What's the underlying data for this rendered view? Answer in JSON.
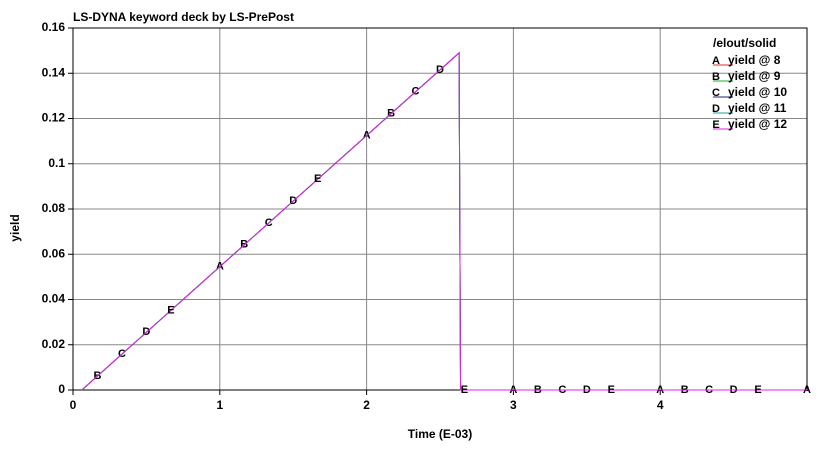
{
  "chart_data": {
    "type": "line",
    "title": "LS-DYNA keyword deck by LS-PrePost",
    "legend_title": "/elout/solid",
    "xlabel": "Time (E-03)",
    "ylabel": "yield",
    "xlim": [
      0,
      5
    ],
    "xticks": [
      0,
      1,
      2,
      3,
      4
    ],
    "ylim": [
      0,
      0.16
    ],
    "yticks": [
      0,
      0.02,
      0.04,
      0.06,
      0.08,
      0.1,
      0.12,
      0.14,
      0.16
    ],
    "grid": true,
    "legend": "top-right",
    "series": [
      {
        "name": "yield @ 8",
        "marker": "A",
        "color": "#e03030",
        "x": [
          0.06,
          2.63,
          2.64,
          5
        ],
        "values": [
          0,
          0.149,
          0,
          0
        ]
      },
      {
        "name": "yield @ 9",
        "marker": "B",
        "color": "#20b020",
        "x": [
          0.06,
          2.63,
          2.64,
          5
        ],
        "values": [
          0,
          0.149,
          0,
          0
        ]
      },
      {
        "name": "yield @ 10",
        "marker": "C",
        "color": "#202080",
        "x": [
          0.06,
          2.63,
          2.64,
          5
        ],
        "values": [
          0,
          0.149,
          0,
          0
        ]
      },
      {
        "name": "yield @ 11",
        "marker": "D",
        "color": "#20a0a0",
        "x": [
          0.06,
          2.63,
          2.64,
          5
        ],
        "values": [
          0,
          0.149,
          0,
          0
        ]
      },
      {
        "name": "yield @ 12",
        "marker": "E",
        "color": "#e020e0",
        "x": [
          0.06,
          2.63,
          2.64,
          5
        ],
        "values": [
          0,
          0.149,
          0,
          0
        ]
      }
    ]
  }
}
